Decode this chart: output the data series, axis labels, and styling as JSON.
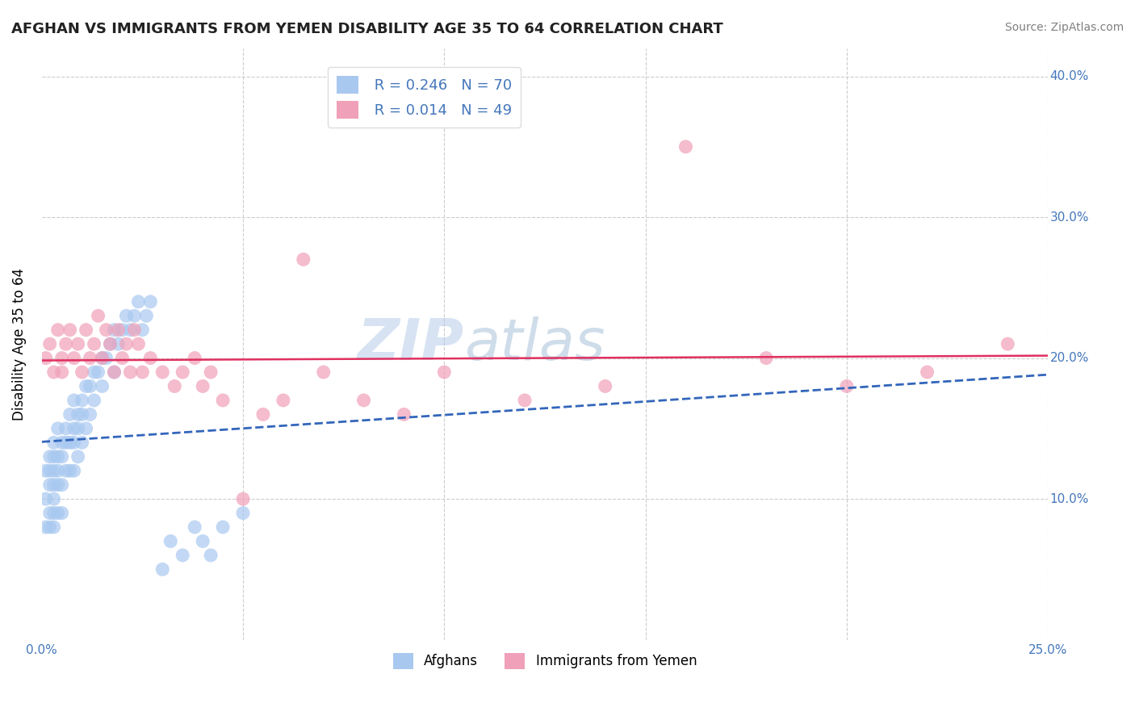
{
  "title": "AFGHAN VS IMMIGRANTS FROM YEMEN DISABILITY AGE 35 TO 64 CORRELATION CHART",
  "source": "Source: ZipAtlas.com",
  "ylabel": "Disability Age 35 to 64",
  "xlim": [
    0.0,
    0.25
  ],
  "ylim": [
    0.0,
    0.42
  ],
  "afghan_R": "0.246",
  "afghan_N": "70",
  "yemen_R": "0.014",
  "yemen_N": "49",
  "afghan_color": "#a8c8f0",
  "yemen_color": "#f0a0b8",
  "trendline_afghan_color": "#3366bb",
  "trendline_afghan_linestyle": "--",
  "trendline_yemen_color": "#e03060",
  "trendline_yemen_linestyle": "-",
  "background": "#ffffff",
  "grid_color": "#cccccc",
  "watermark_zip": "ZIP",
  "watermark_atlas": "atlas",
  "afghan_x": [
    0.001,
    0.001,
    0.001,
    0.002,
    0.002,
    0.002,
    0.002,
    0.002,
    0.003,
    0.003,
    0.003,
    0.003,
    0.003,
    0.003,
    0.003,
    0.004,
    0.004,
    0.004,
    0.004,
    0.004,
    0.005,
    0.005,
    0.005,
    0.005,
    0.006,
    0.006,
    0.006,
    0.007,
    0.007,
    0.007,
    0.008,
    0.008,
    0.008,
    0.008,
    0.009,
    0.009,
    0.009,
    0.01,
    0.01,
    0.01,
    0.011,
    0.011,
    0.012,
    0.012,
    0.013,
    0.013,
    0.014,
    0.015,
    0.015,
    0.016,
    0.017,
    0.018,
    0.018,
    0.019,
    0.02,
    0.021,
    0.022,
    0.023,
    0.024,
    0.025,
    0.026,
    0.027,
    0.03,
    0.032,
    0.035,
    0.038,
    0.04,
    0.042,
    0.045,
    0.05
  ],
  "afghan_y": [
    0.12,
    0.1,
    0.08,
    0.13,
    0.12,
    0.11,
    0.09,
    0.08,
    0.14,
    0.13,
    0.12,
    0.11,
    0.1,
    0.09,
    0.08,
    0.15,
    0.13,
    0.12,
    0.11,
    0.09,
    0.14,
    0.13,
    0.11,
    0.09,
    0.15,
    0.14,
    0.12,
    0.16,
    0.14,
    0.12,
    0.17,
    0.15,
    0.14,
    0.12,
    0.16,
    0.15,
    0.13,
    0.17,
    0.16,
    0.14,
    0.18,
    0.15,
    0.18,
    0.16,
    0.19,
    0.17,
    0.19,
    0.2,
    0.18,
    0.2,
    0.21,
    0.22,
    0.19,
    0.21,
    0.22,
    0.23,
    0.22,
    0.23,
    0.24,
    0.22,
    0.23,
    0.24,
    0.05,
    0.07,
    0.06,
    0.08,
    0.07,
    0.06,
    0.08,
    0.09
  ],
  "yemen_x": [
    0.001,
    0.002,
    0.003,
    0.004,
    0.005,
    0.005,
    0.006,
    0.007,
    0.008,
    0.009,
    0.01,
    0.011,
    0.012,
    0.013,
    0.014,
    0.015,
    0.016,
    0.017,
    0.018,
    0.019,
    0.02,
    0.021,
    0.022,
    0.023,
    0.024,
    0.025,
    0.027,
    0.03,
    0.033,
    0.035,
    0.038,
    0.04,
    0.042,
    0.045,
    0.05,
    0.055,
    0.06,
    0.065,
    0.07,
    0.08,
    0.09,
    0.1,
    0.12,
    0.14,
    0.16,
    0.18,
    0.2,
    0.22,
    0.24
  ],
  "yemen_y": [
    0.2,
    0.21,
    0.19,
    0.22,
    0.2,
    0.19,
    0.21,
    0.22,
    0.2,
    0.21,
    0.19,
    0.22,
    0.2,
    0.21,
    0.23,
    0.2,
    0.22,
    0.21,
    0.19,
    0.22,
    0.2,
    0.21,
    0.19,
    0.22,
    0.21,
    0.19,
    0.2,
    0.19,
    0.18,
    0.19,
    0.2,
    0.18,
    0.19,
    0.17,
    0.1,
    0.16,
    0.17,
    0.27,
    0.19,
    0.17,
    0.16,
    0.19,
    0.17,
    0.18,
    0.35,
    0.2,
    0.18,
    0.19,
    0.21
  ]
}
